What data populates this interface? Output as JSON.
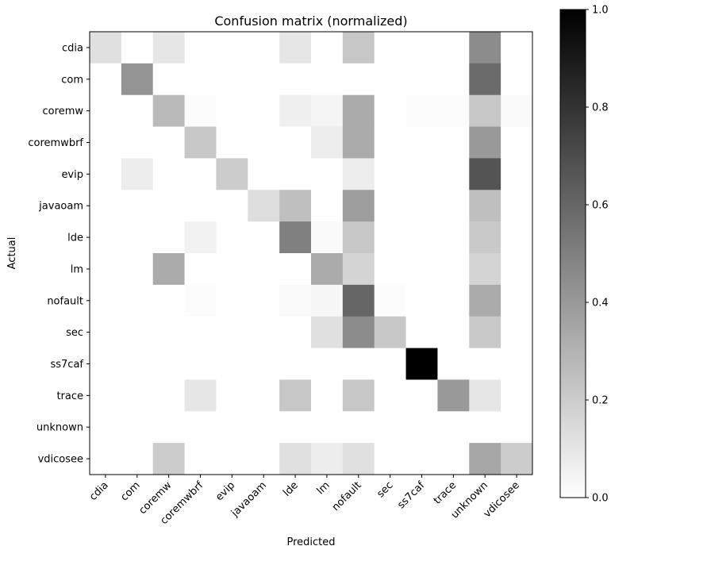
{
  "chart_data": {
    "type": "heatmap",
    "title": "Confusion matrix (normalized)",
    "xlabel": "Predicted",
    "ylabel": "Actual",
    "x_categories": [
      "cdia",
      "com",
      "coremw",
      "coremwbrf",
      "evip",
      "javaoam",
      "lde",
      "lm",
      "nofault",
      "sec",
      "ss7caf",
      "trace",
      "unknown",
      "vdicosee"
    ],
    "y_categories": [
      "cdia",
      "com",
      "coremw",
      "coremwbrf",
      "evip",
      "javaoam",
      "lde",
      "lm",
      "nofault",
      "sec",
      "ss7caf",
      "trace",
      "unknown",
      "vdicosee"
    ],
    "values": [
      [
        0.12,
        0.0,
        0.1,
        0.0,
        0.0,
        0.0,
        0.1,
        0.0,
        0.22,
        0.0,
        0.0,
        0.0,
        0.45,
        0.0
      ],
      [
        0.0,
        0.42,
        0.0,
        0.0,
        0.0,
        0.0,
        0.0,
        0.0,
        0.0,
        0.0,
        0.0,
        0.0,
        0.58,
        0.0
      ],
      [
        0.0,
        0.0,
        0.27,
        0.01,
        0.0,
        0.0,
        0.06,
        0.04,
        0.33,
        0.0,
        0.01,
        0.01,
        0.22,
        0.02
      ],
      [
        0.0,
        0.0,
        0.0,
        0.22,
        0.0,
        0.0,
        0.0,
        0.07,
        0.33,
        0.0,
        0.0,
        0.0,
        0.4,
        0.0
      ],
      [
        0.0,
        0.07,
        0.0,
        0.0,
        0.2,
        0.0,
        0.0,
        0.0,
        0.07,
        0.0,
        0.0,
        0.0,
        0.67,
        0.0
      ],
      [
        0.0,
        0.0,
        0.0,
        0.0,
        0.0,
        0.13,
        0.25,
        0.0,
        0.38,
        0.0,
        0.0,
        0.0,
        0.25,
        0.0
      ],
      [
        0.0,
        0.0,
        0.0,
        0.05,
        0.0,
        0.0,
        0.5,
        0.02,
        0.22,
        0.0,
        0.0,
        0.0,
        0.21,
        0.0
      ],
      [
        0.0,
        0.0,
        0.33,
        0.0,
        0.0,
        0.0,
        0.0,
        0.33,
        0.17,
        0.0,
        0.0,
        0.0,
        0.17,
        0.0
      ],
      [
        0.0,
        0.0,
        0.0,
        0.01,
        0.0,
        0.0,
        0.02,
        0.03,
        0.6,
        0.01,
        0.0,
        0.0,
        0.33,
        0.0
      ],
      [
        0.0,
        0.0,
        0.0,
        0.0,
        0.0,
        0.0,
        0.0,
        0.12,
        0.45,
        0.22,
        0.0,
        0.0,
        0.21,
        0.0
      ],
      [
        0.0,
        0.0,
        0.0,
        0.0,
        0.0,
        0.0,
        0.0,
        0.0,
        0.0,
        0.0,
        1.0,
        0.0,
        0.0,
        0.0
      ],
      [
        0.0,
        0.0,
        0.0,
        0.1,
        0.0,
        0.0,
        0.22,
        0.0,
        0.22,
        0.0,
        0.0,
        0.4,
        0.1,
        0.0
      ],
      [
        0.0,
        0.0,
        0.0,
        0.0,
        0.0,
        0.0,
        0.0,
        0.0,
        0.0,
        0.0,
        0.0,
        0.0,
        0.0,
        0.0
      ],
      [
        0.0,
        0.0,
        0.2,
        0.0,
        0.0,
        0.0,
        0.12,
        0.07,
        0.12,
        0.0,
        0.0,
        0.0,
        0.35,
        0.2
      ]
    ],
    "vmin": 0.0,
    "vmax": 1.0,
    "colormap": "gray_r",
    "colorbar": {
      "ticks": [
        0.0,
        0.2,
        0.4,
        0.6,
        0.8,
        1.0
      ],
      "tick_labels": [
        "0.0",
        "0.2",
        "0.4",
        "0.6",
        "0.8",
        "1.0"
      ],
      "low_color": "#ffffff",
      "high_color": "#000000"
    },
    "grid": false
  }
}
